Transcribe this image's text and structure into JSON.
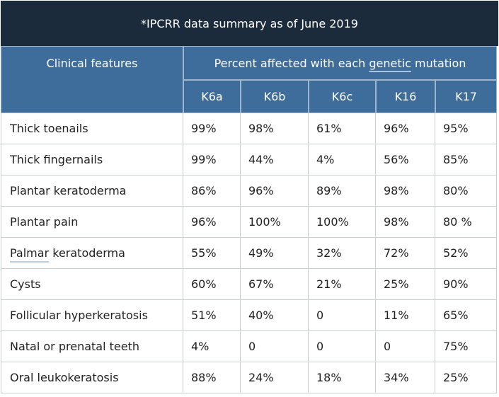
{
  "title": "*IPCRR data summary as of June 2019",
  "header": {
    "clinical_features": "Clinical features",
    "percent_prefix": "Percent affected with each ",
    "percent_link": "genetic",
    "percent_suffix": " mutation",
    "genes": [
      "K6a",
      "K6b",
      "K6c",
      "K16",
      "K17"
    ]
  },
  "rows": [
    {
      "feature": "Thick toenails",
      "values": [
        "99%",
        "98%",
        "61%",
        "96%",
        "95%"
      ]
    },
    {
      "feature": "Thick fingernails",
      "values": [
        "99%",
        "44%",
        "4%",
        "56%",
        "85%"
      ]
    },
    {
      "feature": "Plantar keratoderma",
      "values": [
        "86%",
        "96%",
        "89%",
        "98%",
        "80%"
      ]
    },
    {
      "feature": "Plantar pain",
      "values": [
        "96%",
        "100%",
        "100%",
        "98%",
        "80 %"
      ]
    },
    {
      "feature_link": "Palmar",
      "feature": " keratoderma",
      "values": [
        "55%",
        "49%",
        "32%",
        "72%",
        "52%"
      ]
    },
    {
      "feature": "Cysts",
      "values": [
        "60%",
        "67%",
        "21%",
        "25%",
        "90%"
      ]
    },
    {
      "feature": "Follicular hyperkeratosis",
      "values": [
        "51%",
        "40%",
        "0",
        "11%",
        "65%"
      ]
    },
    {
      "feature": "Natal or prenatal teeth",
      "values": [
        "4%",
        "0",
        "0",
        "0",
        "75%"
      ]
    },
    {
      "feature": "Oral leukokeratosis",
      "values": [
        "88%",
        "24%",
        "18%",
        "34%",
        "25%"
      ]
    }
  ]
}
